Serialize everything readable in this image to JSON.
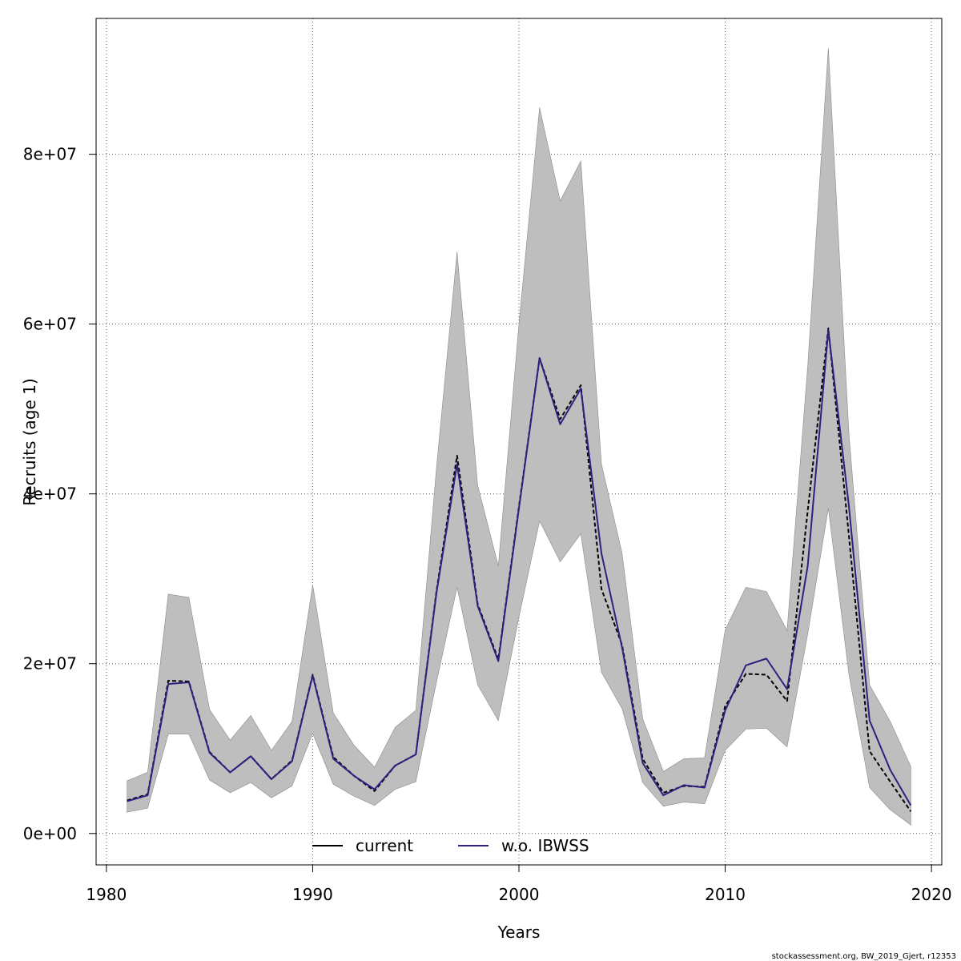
{
  "chart_data": {
    "type": "line",
    "xlabel": "Years",
    "ylabel": "Recruits (age 1)",
    "xlim": [
      1979.5,
      2020.5
    ],
    "ylim": [
      -3700000,
      96000000
    ],
    "xticks": [
      1980,
      1990,
      2000,
      2010,
      2020
    ],
    "xtick_labels": [
      "1980",
      "1990",
      "2000",
      "2010",
      "2020"
    ],
    "yticks": [
      0,
      20000000,
      40000000,
      60000000,
      80000000
    ],
    "ytick_labels": [
      "0e+00",
      "2e+07",
      "4e+07",
      "6e+07",
      "8e+07"
    ],
    "grid": true,
    "legend_position": "bottom-center",
    "x": [
      1981,
      1982,
      1983,
      1984,
      1985,
      1986,
      1987,
      1988,
      1989,
      1990,
      1991,
      1992,
      1993,
      1994,
      1995,
      1996,
      1997,
      1998,
      1999,
      2000,
      2001,
      2002,
      2003,
      2004,
      2005,
      2006,
      2007,
      2008,
      2009,
      2010,
      2011,
      2012,
      2013,
      2014,
      2015,
      2016,
      2017,
      2018,
      2019
    ],
    "band": {
      "color": "#bebebe",
      "lower": [
        2500000,
        3000000,
        11700000,
        11700000,
        6300000,
        4800000,
        6000000,
        4200000,
        5600000,
        11800000,
        5800000,
        4400000,
        3300000,
        5200000,
        6100000,
        17800000,
        29000000,
        17500000,
        13300000,
        25500000,
        36800000,
        32000000,
        35300000,
        19000000,
        14700000,
        6000000,
        3200000,
        3700000,
        3500000,
        9800000,
        12300000,
        12400000,
        10200000,
        23500000,
        38300000,
        18700000,
        5400000,
        2800000,
        1000000
      ],
      "upper": [
        6200000,
        7200000,
        28200000,
        27800000,
        14600000,
        11000000,
        13900000,
        9800000,
        13200000,
        29300000,
        14200000,
        10400000,
        7800000,
        12500000,
        14500000,
        43000000,
        68500000,
        41000000,
        31500000,
        60000000,
        85500000,
        74500000,
        79200000,
        43500000,
        33000000,
        13500000,
        7300000,
        8800000,
        8900000,
        24000000,
        29000000,
        28500000,
        23900000,
        55000000,
        92500000,
        47000000,
        17500000,
        13200000,
        7900000
      ]
    },
    "series": [
      {
        "name": "current",
        "color": "#000000",
        "dash": "5,3",
        "values": [
          3900000,
          4600000,
          18000000,
          17900000,
          9600000,
          7200000,
          9100000,
          6400000,
          8600000,
          18700000,
          9000000,
          6800000,
          5000000,
          8000000,
          9300000,
          28500000,
          44500000,
          27000000,
          20500000,
          38500000,
          56000000,
          48800000,
          52800000,
          28800000,
          22200000,
          8800000,
          4800000,
          5600000,
          5500000,
          15000000,
          18800000,
          18700000,
          15600000,
          38000000,
          59500000,
          35000000,
          9700000,
          6100000,
          2600000
        ]
      },
      {
        "name": "w.o. IBWSS",
        "color": "#2e2080",
        "dash": "",
        "values": [
          3800000,
          4500000,
          17600000,
          17800000,
          9500000,
          7200000,
          9100000,
          6400000,
          8500000,
          18600000,
          8800000,
          6800000,
          5200000,
          8000000,
          9300000,
          28300000,
          43500000,
          26800000,
          20300000,
          38300000,
          56000000,
          48200000,
          52400000,
          33000000,
          21900000,
          8300000,
          4500000,
          5700000,
          5400000,
          14500000,
          19800000,
          20600000,
          17000000,
          31500000,
          59300000,
          38500000,
          13300000,
          7500000,
          3300000
        ]
      }
    ]
  },
  "footer_text": "stockassessment.org, BW_2019_Gjert, r12353"
}
